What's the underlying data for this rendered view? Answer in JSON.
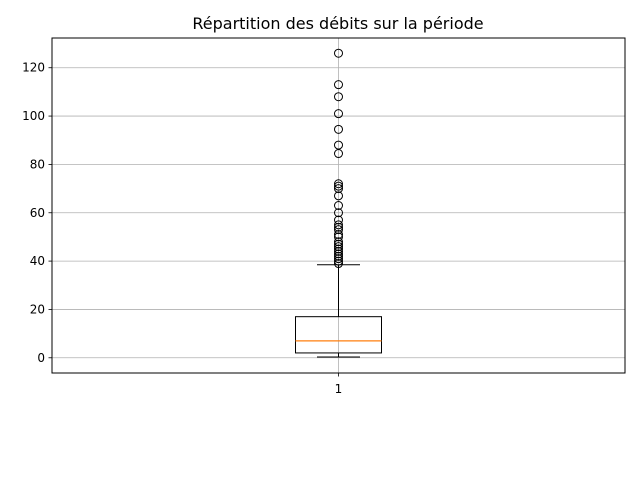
{
  "chart_data": {
    "type": "box",
    "title": "Répartition des débits sur la période",
    "xlabel": "",
    "ylabel": "",
    "categories": [
      "1"
    ],
    "ylim": [
      -6.3,
      132.3
    ],
    "yticks": [
      0,
      20,
      40,
      60,
      80,
      100,
      120
    ],
    "grid": true,
    "boxes": [
      {
        "label": "1",
        "whisker_low": 0.3,
        "q1": 2,
        "median": 7,
        "q3": 17,
        "whisker_high": 38.5,
        "outliers": [
          39,
          40,
          41,
          42,
          43,
          44,
          45,
          46,
          47,
          48,
          50,
          51,
          53,
          54,
          55,
          57,
          60,
          63,
          67,
          70,
          71,
          72,
          84.5,
          88,
          94.5,
          101,
          108,
          113,
          126
        ]
      }
    ],
    "colors": {
      "box": "#000000",
      "median": "#ff7f0e",
      "grid": "#b0b0b0"
    }
  }
}
